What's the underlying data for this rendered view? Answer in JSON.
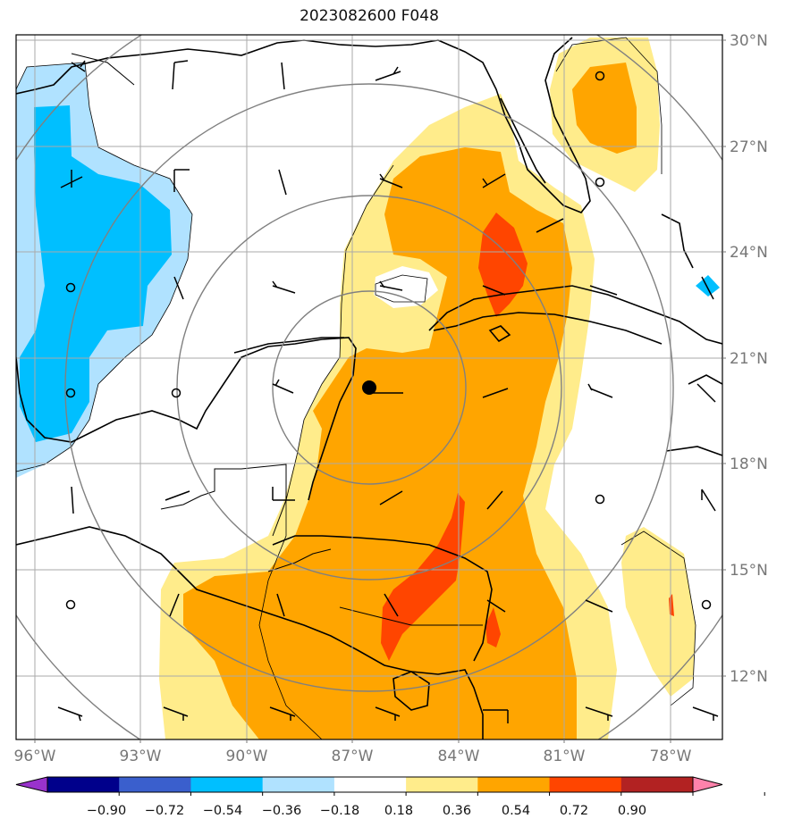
{
  "title": "2023082600 F048",
  "map": {
    "lat_labels": [
      "30°N",
      "27°N",
      "24°N",
      "21°N",
      "18°N",
      "15°N",
      "12°N"
    ],
    "lon_labels": [
      "96°W",
      "93°W",
      "90°W",
      "87°W",
      "84°W",
      "81°W",
      "78°W"
    ],
    "lat_values": [
      30,
      27,
      24,
      21,
      18,
      15,
      12
    ],
    "lon_values": [
      -96,
      -93,
      -90,
      -87,
      -84,
      -81,
      -78
    ],
    "extent": {
      "lon_min": -96.5,
      "lon_max": -76.5,
      "lat_min": 10.2,
      "lat_max": 30.2
    },
    "center_marker": {
      "lat": 20.1,
      "lon": -86.5
    }
  },
  "colorbar": {
    "tick_labels": [
      "−0.90",
      "−0.72",
      "−0.54",
      "−0.36",
      "−0.18",
      "0.18",
      "0.36",
      "0.54",
      "0.72",
      "0.90"
    ],
    "colors": [
      "#9932cc",
      "#00008b",
      "#3a5fcd",
      "#00bfff",
      "#b0e2ff",
      "#ffffff",
      "#ffec8b",
      "#ffa500",
      "#ff4500",
      "#b22222",
      "#ff82ab"
    ]
  },
  "colors": {
    "grid": "#aaaaaa",
    "range_rings": "#808080",
    "coast": "#000000",
    "label_gray": "#777777"
  }
}
